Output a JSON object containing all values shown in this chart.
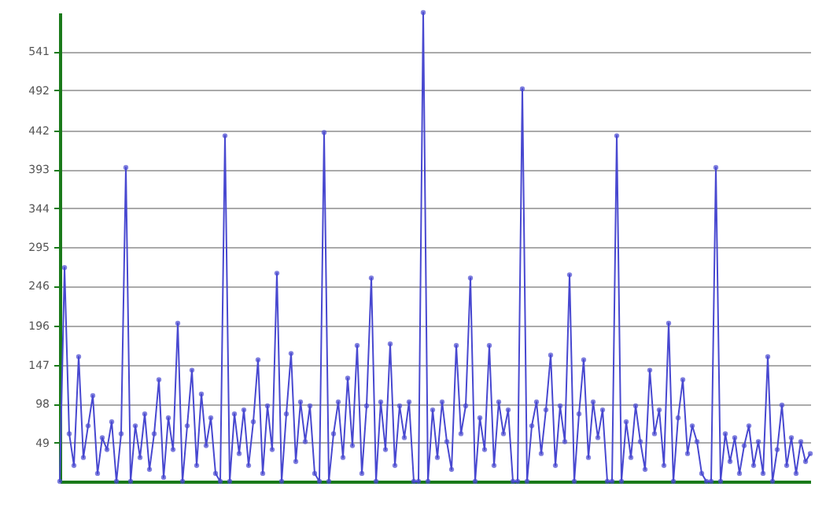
{
  "chart_data": {
    "type": "line",
    "categories": [
      null,
      null,
      null,
      null,
      null,
      null,
      null,
      null,
      null,
      null,
      null,
      null,
      null,
      null,
      null,
      null,
      null,
      null,
      null,
      null,
      null,
      null,
      null,
      null,
      null,
      null,
      null,
      null,
      null,
      null,
      null,
      null,
      null,
      null,
      null,
      null,
      null,
      null,
      null,
      null,
      null,
      null,
      null,
      null,
      null,
      null,
      null,
      null,
      null,
      null,
      null,
      null,
      null,
      null,
      null,
      null,
      null,
      null,
      null,
      null,
      null,
      null,
      null,
      null,
      null,
      null,
      null,
      null,
      null,
      null,
      null,
      null,
      null,
      null,
      null,
      null,
      null,
      null,
      null,
      null,
      null,
      null,
      null,
      null,
      null,
      null,
      null,
      null,
      null,
      null,
      null,
      null,
      null,
      null,
      null,
      null,
      null,
      null,
      null,
      null,
      null,
      null,
      null,
      null,
      null,
      null,
      null,
      null,
      null,
      null,
      null,
      null,
      null,
      null,
      null,
      null,
      null,
      null,
      null,
      null,
      null,
      null,
      null,
      null,
      null,
      null,
      null,
      null,
      null,
      null,
      null,
      null,
      null,
      null,
      null,
      null,
      null,
      null,
      null,
      null,
      null,
      null,
      null,
      null,
      null,
      null,
      null,
      null,
      null,
      null,
      null,
      null,
      null,
      null,
      null,
      null,
      null,
      null,
      null,
      null
    ],
    "series": [
      {
        "color": "#4848d0",
        "values": [
          0,
          269,
          60,
          20,
          157,
          30,
          70,
          108,
          10,
          55,
          40,
          75,
          0,
          60,
          395,
          0,
          70,
          30,
          85,
          15,
          60,
          128,
          5,
          80,
          40,
          199,
          0,
          70,
          140,
          20,
          110,
          45,
          80,
          10,
          0,
          435,
          0,
          85,
          35,
          90,
          20,
          75,
          153,
          10,
          95,
          40,
          262,
          0,
          85,
          161,
          25,
          100,
          50,
          95,
          10,
          0,
          439,
          0,
          60,
          100,
          30,
          130,
          45,
          171,
          10,
          95,
          256,
          0,
          100,
          40,
          173,
          20,
          95,
          55,
          100,
          0,
          0,
          590,
          0,
          90,
          30,
          100,
          50,
          15,
          171,
          60,
          95,
          256,
          0,
          80,
          40,
          171,
          20,
          100,
          60,
          90,
          0,
          0,
          494,
          0,
          70,
          100,
          35,
          90,
          159,
          20,
          95,
          50,
          260,
          0,
          85,
          153,
          30,
          100,
          55,
          90,
          0,
          0,
          435,
          0,
          75,
          30,
          95,
          50,
          15,
          140,
          60,
          90,
          20,
          199,
          0,
          80,
          128,
          35,
          70,
          50,
          10,
          0,
          0,
          395,
          0,
          60,
          25,
          55,
          10,
          45,
          70,
          20,
          50,
          10,
          157,
          0,
          40,
          96,
          20,
          55,
          10,
          50,
          25,
          35
        ]
      }
    ],
    "ylim": [
      0,
      590
    ],
    "yticks": [
      49,
      98,
      147,
      196,
      246,
      295,
      344,
      393,
      442,
      492,
      541
    ],
    "grid": "y",
    "marker": "circle",
    "tick_labels": "y"
  }
}
